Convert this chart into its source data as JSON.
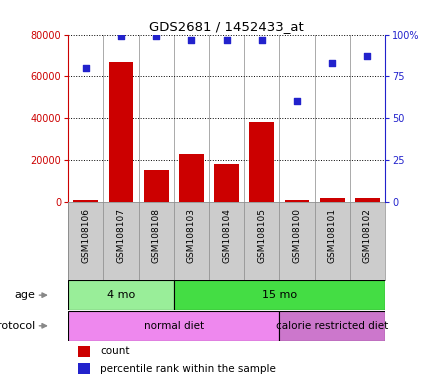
{
  "title": "GDS2681 / 1452433_at",
  "samples": [
    "GSM108106",
    "GSM108107",
    "GSM108108",
    "GSM108103",
    "GSM108104",
    "GSM108105",
    "GSM108100",
    "GSM108101",
    "GSM108102"
  ],
  "counts": [
    1000,
    67000,
    15000,
    23000,
    18000,
    38000,
    800,
    2000,
    2000
  ],
  "percentiles": [
    80,
    99,
    99,
    97,
    97,
    97,
    60,
    83,
    87
  ],
  "bar_color": "#cc0000",
  "dot_color": "#2222cc",
  "age_groups": [
    {
      "label": "4 mo",
      "start": 0,
      "end": 3,
      "color": "#99ee99"
    },
    {
      "label": "15 mo",
      "start": 3,
      "end": 9,
      "color": "#44dd44"
    }
  ],
  "protocol_groups": [
    {
      "label": "normal diet",
      "start": 0,
      "end": 6,
      "color": "#ee88ee"
    },
    {
      "label": "calorie restricted diet",
      "start": 6,
      "end": 9,
      "color": "#cc77cc"
    }
  ],
  "ylim_left": [
    0,
    80000
  ],
  "ylim_right": [
    0,
    100
  ],
  "yticks_left": [
    0,
    20000,
    40000,
    60000,
    80000
  ],
  "yticks_right": [
    0,
    25,
    50,
    75,
    100
  ],
  "grid_values": [
    20000,
    40000,
    60000,
    80000
  ],
  "left_tick_color": "#cc0000",
  "right_tick_color": "#2222cc",
  "tick_area_color": "#cccccc",
  "n_samples": 9
}
